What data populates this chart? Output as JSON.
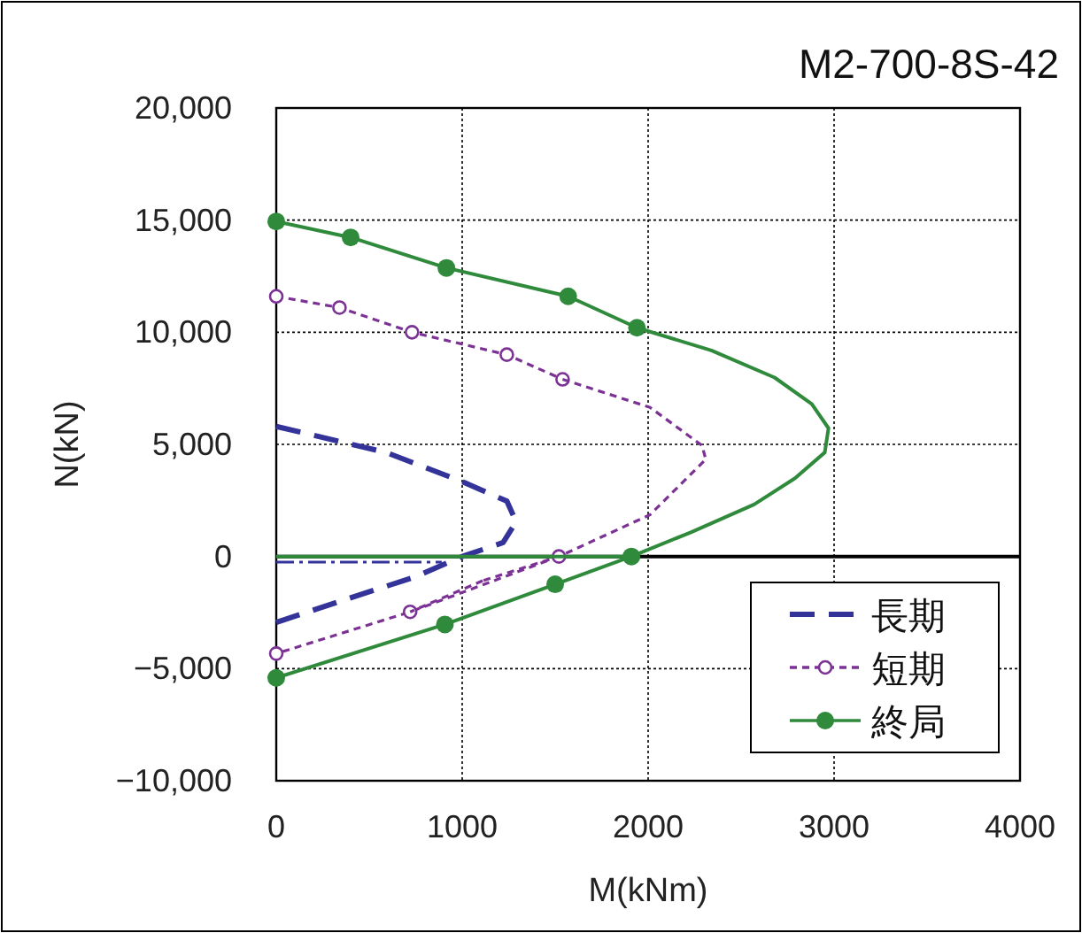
{
  "chart_data": {
    "type": "line",
    "title": "M2-700-8S-42",
    "xlabel": "M(kNm)",
    "ylabel": "N(kN)",
    "xlim": [
      0,
      4000
    ],
    "xticks": [
      0,
      1000,
      2000,
      3000,
      4000
    ],
    "ylim": [
      -10000,
      20000
    ],
    "yticks": [
      {
        "value": -10000,
        "label": "−10,000"
      },
      {
        "value": -5000,
        "label": "−5,000"
      },
      0,
      {
        "value": 5000,
        "label": "5,000"
      },
      {
        "value": 10000,
        "label": "10,000"
      },
      {
        "value": 15000,
        "label": "15,000"
      },
      {
        "value": 20000,
        "label": "20,000"
      }
    ],
    "grid": true,
    "legend": "bottom right",
    "ref_lines": [
      {
        "axis": "y",
        "value": 0,
        "color": "#000000",
        "line_style": "solid"
      }
    ],
    "series": [
      {
        "name": "長期",
        "color": "#333399",
        "line_style": "dashed",
        "marker": "none",
        "x": [
          0,
          590,
          1000,
          1240,
          1290,
          1220,
          1000,
          740,
          370,
          0
        ],
        "values": [
          5800,
          4640,
          3340,
          2470,
          1550,
          620,
          0,
          -930,
          -1920,
          -2940
        ]
      },
      {
        "color": "#333399",
        "line_style": "dashed",
        "marker": "none",
        "x": [
          0,
          890
        ],
        "values": [
          -250,
          -250
        ]
      },
      {
        "name": "短期",
        "color": "#7b3294",
        "line_style": "dotted",
        "marker": "open circle",
        "x": [
          0,
          340,
          730,
          1240,
          1540
        ],
        "values": [
          11600,
          11100,
          10000,
          9000,
          7900
        ]
      },
      {
        "color": "#7b3294",
        "line_style": "dotted",
        "marker": "none",
        "x": [
          1540,
          2010,
          2290,
          2310,
          2010,
          1520,
          1110
        ],
        "values": [
          7900,
          6650,
          4950,
          4330,
          1860,
          0,
          -1080
        ]
      },
      {
        "color": "#7b3294",
        "line_style": "dotted",
        "marker": "open circle",
        "x": [
          1520,
          720,
          0
        ],
        "values": [
          0,
          -2470,
          -4330
        ]
      },
      {
        "color": "#7b3294",
        "line_style": "dotted",
        "marker": "none",
        "x": [
          1110,
          720
        ],
        "values": [
          -1080,
          -2470
        ]
      },
      {
        "name": "終局",
        "color": "#2f8a3c",
        "line_style": "solid",
        "marker": "circle",
        "x": [
          0,
          400,
          915,
          1570,
          1940
        ],
        "values": [
          14940,
          14230,
          12870,
          11600,
          10200
        ]
      },
      {
        "color": "#2f8a3c",
        "line_style": "solid",
        "marker": "none",
        "x": [
          1940,
          2340,
          2680,
          2880,
          2970,
          2950,
          2790,
          2570,
          2230,
          1910
        ],
        "values": [
          10200,
          9190,
          7980,
          6800,
          5720,
          4640,
          3490,
          2320,
          1080,
          0
        ]
      },
      {
        "color": "#2f8a3c",
        "line_style": "solid",
        "marker": "circle",
        "x": [
          1910,
          1500,
          907,
          0
        ],
        "values": [
          0,
          -1240,
          -3030,
          -5410
        ]
      },
      {
        "color": "#2f8a3c",
        "line_style": "solid",
        "marker": "none",
        "x": [
          0,
          1910
        ],
        "values": [
          0,
          0
        ]
      }
    ]
  }
}
